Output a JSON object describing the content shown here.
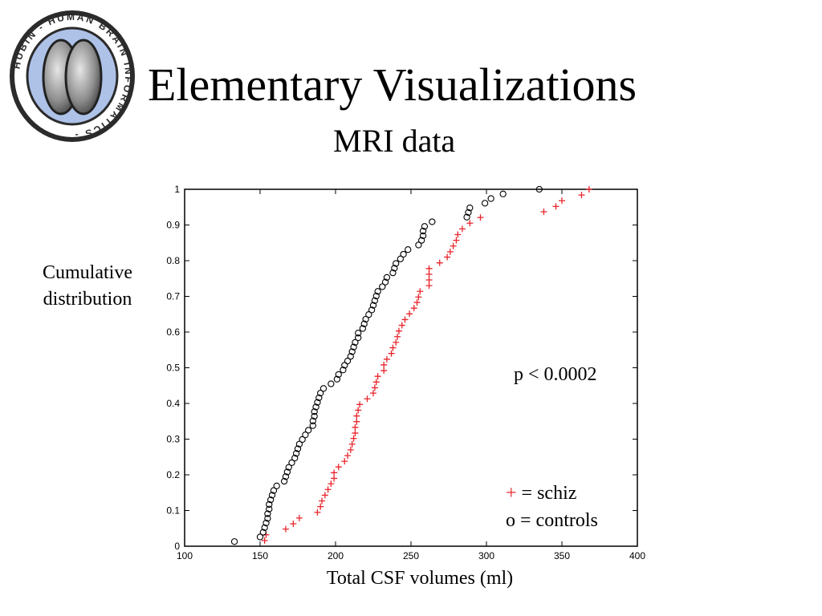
{
  "header": {
    "title": "Elementary Visualizations",
    "subtitle": "MRI data"
  },
  "logo": {
    "ring_text": "HUBIN - HUMAN BRAIN INFORMATICS -",
    "colors": {
      "ring": "#2b2b2b",
      "inner": "#aec2e8",
      "brain": "#8f8f8f"
    }
  },
  "annotation": {
    "pvalue": "p < 0.0002"
  },
  "legend": {
    "schiz_marker": "+",
    "schiz_label": "= schiz",
    "controls_label": "o = controls"
  },
  "chart_data": {
    "type": "scatter",
    "title": "",
    "xlabel": "Total CSF volumes (ml)",
    "ylabel": "Cumulative distribution",
    "xlim": [
      100,
      400
    ],
    "ylim": [
      0,
      1
    ],
    "xticks": [
      "100",
      "150",
      "200",
      "250",
      "300",
      "350",
      "400"
    ],
    "yticks": [
      "0",
      "0.1",
      "0.2",
      "0.3",
      "0.4",
      "0.5",
      "0.6",
      "0.7",
      "0.8",
      "0.9",
      "1"
    ],
    "grid": false,
    "series": [
      {
        "name": "schiz",
        "marker": "+",
        "color": "#e8252b",
        "x": [
          153,
          154,
          167,
          172,
          176,
          188,
          190,
          191,
          193,
          195,
          197,
          199,
          199,
          202,
          206,
          208,
          210,
          211,
          212,
          213,
          213,
          214,
          214,
          215,
          216,
          221,
          225,
          226,
          227,
          228,
          232,
          232,
          234,
          237,
          238,
          240,
          241,
          242,
          244,
          246,
          249,
          252,
          254,
          255,
          256,
          262,
          262,
          262,
          262,
          269,
          274,
          276,
          278,
          280,
          281,
          284,
          289,
          296,
          338,
          346,
          350,
          363,
          368
        ],
        "y": [
          0.016,
          0.032,
          0.048,
          0.063,
          0.079,
          0.095,
          0.111,
          0.127,
          0.143,
          0.159,
          0.175,
          0.19,
          0.206,
          0.222,
          0.238,
          0.254,
          0.27,
          0.286,
          0.302,
          0.317,
          0.333,
          0.349,
          0.365,
          0.381,
          0.397,
          0.413,
          0.429,
          0.444,
          0.46,
          0.476,
          0.492,
          0.508,
          0.524,
          0.54,
          0.556,
          0.571,
          0.587,
          0.603,
          0.619,
          0.635,
          0.651,
          0.667,
          0.683,
          0.698,
          0.714,
          0.73,
          0.746,
          0.762,
          0.778,
          0.794,
          0.81,
          0.825,
          0.841,
          0.857,
          0.873,
          0.889,
          0.905,
          0.921,
          0.937,
          0.952,
          0.968,
          0.984,
          1.0
        ]
      },
      {
        "name": "controls",
        "marker": "o",
        "color": "#000000",
        "x": [
          133,
          150,
          152,
          153,
          154,
          155,
          155,
          156,
          156,
          157,
          158,
          159,
          161,
          166,
          167,
          168,
          169,
          171,
          173,
          174,
          175,
          176,
          178,
          180,
          182,
          185,
          185,
          186,
          186,
          187,
          188,
          189,
          190,
          192,
          197,
          201,
          202,
          205,
          206,
          208,
          210,
          211,
          212,
          213,
          215,
          215,
          218,
          219,
          220,
          222,
          224,
          225,
          226,
          227,
          228,
          231,
          233,
          234,
          238,
          239,
          240,
          243,
          245,
          248,
          255,
          257,
          258,
          258,
          259,
          264,
          287,
          288,
          289,
          299,
          303,
          311,
          335
        ],
        "y": [
          0.013,
          0.026,
          0.039,
          0.052,
          0.065,
          0.078,
          0.091,
          0.104,
          0.117,
          0.13,
          0.143,
          0.156,
          0.169,
          0.182,
          0.195,
          0.208,
          0.221,
          0.234,
          0.247,
          0.26,
          0.273,
          0.286,
          0.299,
          0.312,
          0.325,
          0.338,
          0.351,
          0.364,
          0.377,
          0.39,
          0.403,
          0.416,
          0.429,
          0.442,
          0.455,
          0.468,
          0.481,
          0.494,
          0.507,
          0.519,
          0.532,
          0.545,
          0.558,
          0.571,
          0.584,
          0.597,
          0.61,
          0.623,
          0.636,
          0.649,
          0.662,
          0.675,
          0.688,
          0.701,
          0.714,
          0.727,
          0.74,
          0.753,
          0.766,
          0.779,
          0.792,
          0.805,
          0.818,
          0.831,
          0.844,
          0.857,
          0.87,
          0.883,
          0.896,
          0.909,
          0.922,
          0.935,
          0.948,
          0.961,
          0.974,
          0.987,
          1.0
        ]
      }
    ]
  }
}
